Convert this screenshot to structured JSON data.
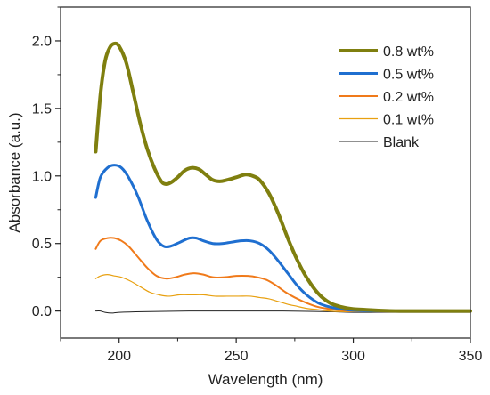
{
  "chart_data": {
    "type": "line",
    "title": "",
    "xlabel": "Wavelength (nm)",
    "ylabel": "Absorbance (a.u.)",
    "xlim": [
      175,
      350
    ],
    "ylim": [
      -0.2,
      2.25
    ],
    "xticks": [
      200,
      250,
      300,
      350
    ],
    "yticks": [
      0.0,
      0.5,
      1.0,
      1.5,
      2.0
    ],
    "xtick_labels": [
      "200",
      "250",
      "300",
      "350"
    ],
    "ytick_labels": [
      "0.0",
      "0.5",
      "1.0",
      "1.5",
      "2.0"
    ],
    "grid": false,
    "legend_position": "top-right",
    "series": [
      {
        "name": "0.8 wt%",
        "color": "#7f7f0f",
        "line_width": 4,
        "points": [
          [
            190,
            1.18
          ],
          [
            192,
            1.6
          ],
          [
            194,
            1.85
          ],
          [
            196,
            1.95
          ],
          [
            198,
            1.98
          ],
          [
            200,
            1.96
          ],
          [
            203,
            1.84
          ],
          [
            206,
            1.62
          ],
          [
            209,
            1.39
          ],
          [
            212,
            1.2
          ],
          [
            215,
            1.06
          ],
          [
            218,
            0.96
          ],
          [
            220,
            0.94
          ],
          [
            222,
            0.95
          ],
          [
            225,
            0.99
          ],
          [
            228,
            1.04
          ],
          [
            231,
            1.06
          ],
          [
            234,
            1.05
          ],
          [
            237,
            1.01
          ],
          [
            240,
            0.97
          ],
          [
            243,
            0.96
          ],
          [
            246,
            0.97
          ],
          [
            250,
            0.99
          ],
          [
            254,
            1.01
          ],
          [
            257,
            1.0
          ],
          [
            260,
            0.97
          ],
          [
            264,
            0.87
          ],
          [
            268,
            0.72
          ],
          [
            272,
            0.54
          ],
          [
            276,
            0.38
          ],
          [
            280,
            0.25
          ],
          [
            285,
            0.13
          ],
          [
            290,
            0.06
          ],
          [
            295,
            0.03
          ],
          [
            300,
            0.015
          ],
          [
            305,
            0.01
          ],
          [
            310,
            0.005
          ],
          [
            320,
            0.0
          ],
          [
            335,
            0.0
          ],
          [
            350,
            0.0
          ]
        ]
      },
      {
        "name": "0.5 wt%",
        "color": "#1f6fd0",
        "line_width": 3,
        "points": [
          [
            190,
            0.84
          ],
          [
            192,
            0.99
          ],
          [
            195,
            1.06
          ],
          [
            198,
            1.08
          ],
          [
            201,
            1.06
          ],
          [
            204,
            0.99
          ],
          [
            208,
            0.85
          ],
          [
            212,
            0.67
          ],
          [
            216,
            0.53
          ],
          [
            219,
            0.48
          ],
          [
            222,
            0.48
          ],
          [
            226,
            0.51
          ],
          [
            230,
            0.54
          ],
          [
            233,
            0.54
          ],
          [
            236,
            0.52
          ],
          [
            240,
            0.5
          ],
          [
            244,
            0.5
          ],
          [
            248,
            0.51
          ],
          [
            252,
            0.52
          ],
          [
            256,
            0.52
          ],
          [
            260,
            0.5
          ],
          [
            264,
            0.45
          ],
          [
            268,
            0.37
          ],
          [
            272,
            0.28
          ],
          [
            276,
            0.19
          ],
          [
            280,
            0.12
          ],
          [
            285,
            0.06
          ],
          [
            290,
            0.03
          ],
          [
            295,
            0.015
          ],
          [
            300,
            0.005
          ],
          [
            310,
            0.0
          ],
          [
            330,
            0.0
          ],
          [
            350,
            0.0
          ]
        ]
      },
      {
        "name": "0.2 wt%",
        "color": "#f07a1a",
        "line_width": 2,
        "points": [
          [
            190,
            0.46
          ],
          [
            192,
            0.52
          ],
          [
            195,
            0.54
          ],
          [
            198,
            0.54
          ],
          [
            201,
            0.52
          ],
          [
            204,
            0.48
          ],
          [
            208,
            0.4
          ],
          [
            212,
            0.32
          ],
          [
            216,
            0.26
          ],
          [
            220,
            0.24
          ],
          [
            224,
            0.25
          ],
          [
            228,
            0.27
          ],
          [
            232,
            0.28
          ],
          [
            236,
            0.27
          ],
          [
            240,
            0.25
          ],
          [
            245,
            0.25
          ],
          [
            250,
            0.26
          ],
          [
            255,
            0.26
          ],
          [
            259,
            0.25
          ],
          [
            263,
            0.23
          ],
          [
            267,
            0.19
          ],
          [
            271,
            0.14
          ],
          [
            275,
            0.1
          ],
          [
            280,
            0.06
          ],
          [
            285,
            0.03
          ],
          [
            290,
            0.015
          ],
          [
            295,
            0.005
          ],
          [
            300,
            0.0
          ],
          [
            320,
            -0.005
          ],
          [
            350,
            -0.005
          ]
        ]
      },
      {
        "name": "0.1 wt%",
        "color": "#e8a010",
        "line_width": 1.2,
        "points": [
          [
            190,
            0.24
          ],
          [
            192,
            0.26
          ],
          [
            195,
            0.27
          ],
          [
            198,
            0.26
          ],
          [
            201,
            0.25
          ],
          [
            205,
            0.22
          ],
          [
            209,
            0.18
          ],
          [
            213,
            0.14
          ],
          [
            217,
            0.12
          ],
          [
            221,
            0.11
          ],
          [
            226,
            0.12
          ],
          [
            231,
            0.12
          ],
          [
            236,
            0.12
          ],
          [
            241,
            0.11
          ],
          [
            246,
            0.11
          ],
          [
            251,
            0.11
          ],
          [
            256,
            0.11
          ],
          [
            260,
            0.1
          ],
          [
            264,
            0.09
          ],
          [
            268,
            0.07
          ],
          [
            272,
            0.05
          ],
          [
            276,
            0.035
          ],
          [
            280,
            0.02
          ],
          [
            285,
            0.01
          ],
          [
            290,
            0.0
          ],
          [
            300,
            -0.005
          ],
          [
            350,
            -0.005
          ]
        ]
      },
      {
        "name": "Blank",
        "color": "#222222",
        "line_width": 1,
        "points": [
          [
            190,
            0.0
          ],
          [
            192,
            0.0
          ],
          [
            194,
            -0.01
          ],
          [
            197,
            -0.015
          ],
          [
            200,
            -0.01
          ],
          [
            210,
            -0.005
          ],
          [
            230,
            0.0
          ],
          [
            250,
            0.0
          ],
          [
            270,
            0.0
          ],
          [
            290,
            -0.005
          ],
          [
            300,
            -0.01
          ],
          [
            320,
            -0.01
          ],
          [
            350,
            -0.01
          ]
        ]
      }
    ]
  }
}
